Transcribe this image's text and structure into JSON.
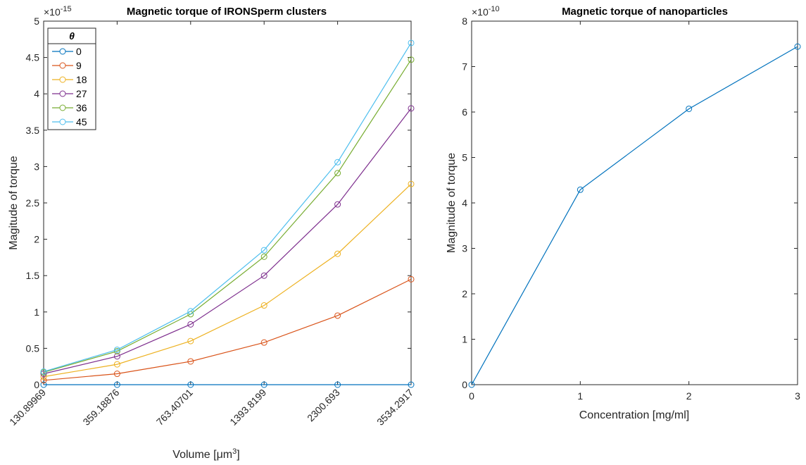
{
  "chart_data": [
    {
      "type": "line",
      "title": "Magnetic torque of IRONSperm clusters",
      "xlabel": "Volume [μm³]",
      "xlabel_base": "Volume [",
      "xlabel_unit": "μm",
      "xlabel_sup": "3",
      "xlabel_end": "]",
      "ylabel": "Magitude of torque",
      "y_exponent_base": "×10",
      "y_exponent": "-15",
      "categories": [
        "130.89969",
        "359.18876",
        "763.40701",
        "1393.8199",
        "2300.693",
        "3534.2917"
      ],
      "ylim": [
        0,
        5
      ],
      "yticks": [
        0,
        0.5,
        1,
        1.5,
        2,
        2.5,
        3,
        3.5,
        4,
        4.5,
        5
      ],
      "ytick_labels": [
        "0",
        "0.5",
        "1",
        "1.5",
        "2",
        "2.5",
        "3",
        "3.5",
        "4",
        "4.5",
        "5"
      ],
      "legend_title": "θ",
      "legend_position": "top-left",
      "series": [
        {
          "name": "0",
          "color": "#0072BD",
          "values": [
            0,
            0,
            0,
            0,
            0,
            0
          ]
        },
        {
          "name": "9",
          "color": "#D95319",
          "values": [
            0.06,
            0.15,
            0.32,
            0.58,
            0.95,
            1.45
          ]
        },
        {
          "name": "18",
          "color": "#EDB120",
          "values": [
            0.11,
            0.28,
            0.6,
            1.09,
            1.8,
            2.76
          ]
        },
        {
          "name": "27",
          "color": "#7E2F8E",
          "values": [
            0.15,
            0.39,
            0.83,
            1.5,
            2.48,
            3.8
          ]
        },
        {
          "name": "36",
          "color": "#77AC30",
          "values": [
            0.17,
            0.46,
            0.97,
            1.76,
            2.91,
            4.47
          ]
        },
        {
          "name": "45",
          "color": "#4DBEEE",
          "values": [
            0.18,
            0.48,
            1.01,
            1.85,
            3.06,
            4.7
          ]
        }
      ]
    },
    {
      "type": "line",
      "title": "Magnetic torque of nanoparticles",
      "xlabel": "Concentration [mg/ml]",
      "ylabel": "Magnitude of torque",
      "y_exponent_base": "×10",
      "y_exponent": "-10",
      "x": [
        0,
        1,
        2,
        3
      ],
      "xlim": [
        0,
        3
      ],
      "xticks": [
        0,
        1,
        2,
        3
      ],
      "xtick_labels": [
        "0",
        "1",
        "2",
        "3"
      ],
      "ylim": [
        0,
        8
      ],
      "yticks": [
        0,
        1,
        2,
        3,
        4,
        5,
        6,
        7,
        8
      ],
      "ytick_labels": [
        "0",
        "1",
        "2",
        "3",
        "4",
        "5",
        "6",
        "7",
        "8"
      ],
      "series": [
        {
          "color": "#0072BD",
          "values": [
            0,
            4.29,
            6.07,
            7.44
          ]
        }
      ]
    }
  ]
}
